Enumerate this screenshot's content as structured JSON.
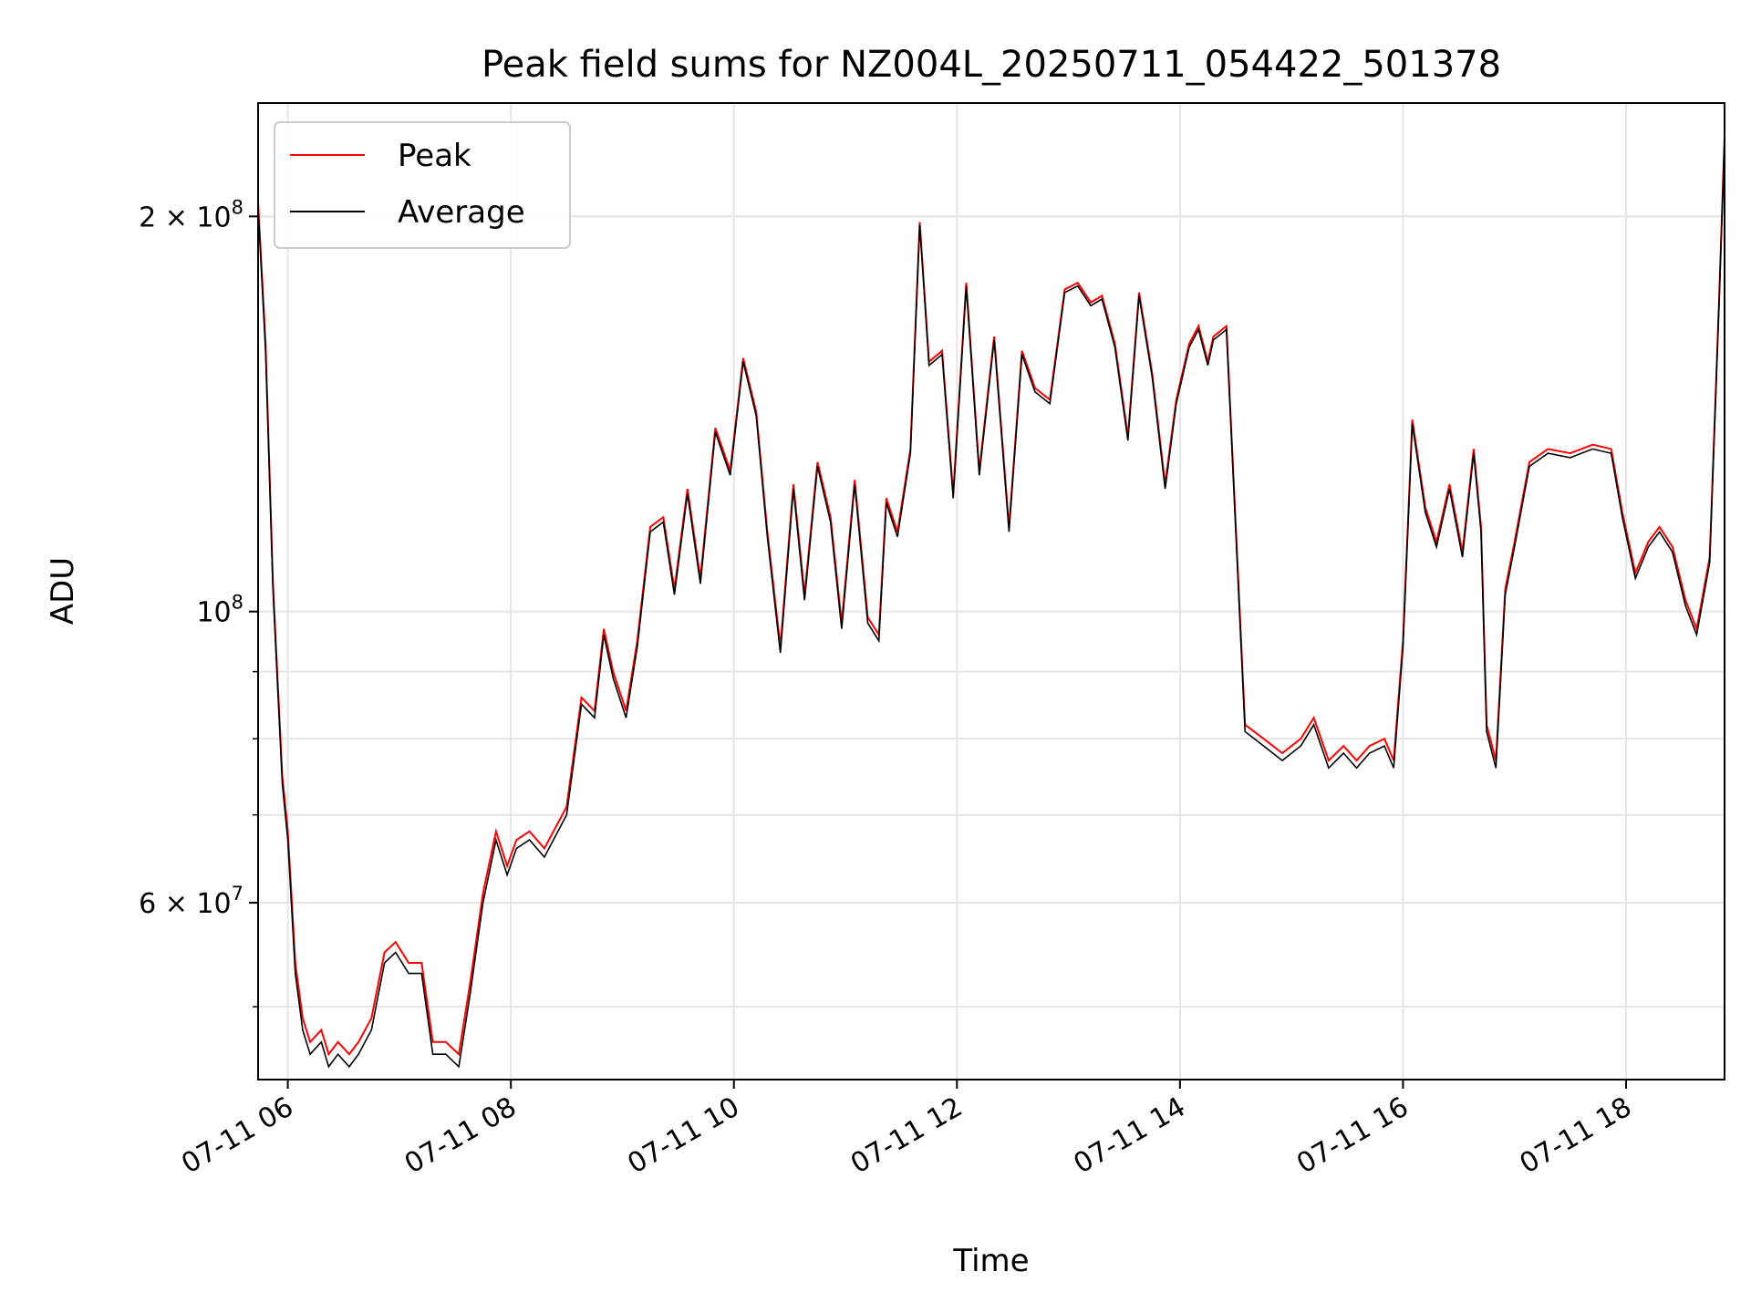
{
  "chart_data": {
    "type": "line",
    "title": "Peak field sums for NZ004L_20250711_054422_501378",
    "xlabel": "Time",
    "ylabel": "ADU",
    "y_scale": "log",
    "ylim": [
      44000000,
      244000000
    ],
    "xlim": [
      "2025-07-11 05:44",
      "2025-07-11 18:53"
    ],
    "grid": true,
    "legend_position": "top-left",
    "x_tick_labels": [
      "07-11 06",
      "07-11 08",
      "07-11 10",
      "07-11 12",
      "07-11 14",
      "07-11 16",
      "07-11 18"
    ],
    "x_tick_values": [
      "2025-07-11 06:00",
      "2025-07-11 08:00",
      "2025-07-11 10:00",
      "2025-07-11 12:00",
      "2025-07-11 14:00",
      "2025-07-11 16:00",
      "2025-07-11 18:00"
    ],
    "y_tick_labels": [
      {
        "value": 200000000,
        "mantissa": "2",
        "exponent": "8"
      },
      {
        "value": 100000000,
        "mantissa": "",
        "exponent": "8"
      },
      {
        "value": 60000000,
        "mantissa": "6",
        "exponent": "7"
      }
    ],
    "y_minor_ticks": [
      40000000,
      50000000,
      60000000,
      70000000,
      80000000,
      90000000,
      200000000
    ],
    "series": [
      {
        "name": "Peak",
        "color": "#ff0000"
      },
      {
        "name": "Average",
        "color": "#000000"
      }
    ],
    "x": [
      "2025-07-11 05:44",
      "2025-07-11 05:48",
      "2025-07-11 05:52",
      "2025-07-11 05:57",
      "2025-07-11 06:00",
      "2025-07-11 06:04",
      "2025-07-11 06:08",
      "2025-07-11 06:12",
      "2025-07-11 06:18",
      "2025-07-11 06:22",
      "2025-07-11 06:27",
      "2025-07-11 06:33",
      "2025-07-11 06:38",
      "2025-07-11 06:45",
      "2025-07-11 06:52",
      "2025-07-11 06:58",
      "2025-07-11 07:05",
      "2025-07-11 07:12",
      "2025-07-11 07:18",
      "2025-07-11 07:25",
      "2025-07-11 07:32",
      "2025-07-11 07:38",
      "2025-07-11 07:45",
      "2025-07-11 07:52",
      "2025-07-11 07:58",
      "2025-07-11 08:03",
      "2025-07-11 08:10",
      "2025-07-11 08:18",
      "2025-07-11 08:30",
      "2025-07-11 08:38",
      "2025-07-11 08:45",
      "2025-07-11 08:50",
      "2025-07-11 08:55",
      "2025-07-11 09:02",
      "2025-07-11 09:08",
      "2025-07-11 09:15",
      "2025-07-11 09:22",
      "2025-07-11 09:28",
      "2025-07-11 09:35",
      "2025-07-11 09:42",
      "2025-07-11 09:50",
      "2025-07-11 09:58",
      "2025-07-11 10:05",
      "2025-07-11 10:12",
      "2025-07-11 10:18",
      "2025-07-11 10:25",
      "2025-07-11 10:32",
      "2025-07-11 10:38",
      "2025-07-11 10:45",
      "2025-07-11 10:52",
      "2025-07-11 10:58",
      "2025-07-11 11:05",
      "2025-07-11 11:12",
      "2025-07-11 11:18",
      "2025-07-11 11:22",
      "2025-07-11 11:28",
      "2025-07-11 11:35",
      "2025-07-11 11:40",
      "2025-07-11 11:45",
      "2025-07-11 11:52",
      "2025-07-11 11:58",
      "2025-07-11 12:05",
      "2025-07-11 12:12",
      "2025-07-11 12:20",
      "2025-07-11 12:28",
      "2025-07-11 12:35",
      "2025-07-11 12:42",
      "2025-07-11 12:50",
      "2025-07-11 12:58",
      "2025-07-11 13:05",
      "2025-07-11 13:12",
      "2025-07-11 13:18",
      "2025-07-11 13:25",
      "2025-07-11 13:32",
      "2025-07-11 13:38",
      "2025-07-11 13:45",
      "2025-07-11 13:52",
      "2025-07-11 13:58",
      "2025-07-11 14:05",
      "2025-07-11 14:10",
      "2025-07-11 14:15",
      "2025-07-11 14:18",
      "2025-07-11 14:25",
      "2025-07-11 14:35",
      "2025-07-11 14:45",
      "2025-07-11 14:55",
      "2025-07-11 15:05",
      "2025-07-11 15:12",
      "2025-07-11 15:20",
      "2025-07-11 15:28",
      "2025-07-11 15:35",
      "2025-07-11 15:42",
      "2025-07-11 15:50",
      "2025-07-11 15:55",
      "2025-07-11 16:00",
      "2025-07-11 16:05",
      "2025-07-11 16:12",
      "2025-07-11 16:18",
      "2025-07-11 16:25",
      "2025-07-11 16:32",
      "2025-07-11 16:38",
      "2025-07-11 16:42",
      "2025-07-11 16:45",
      "2025-07-11 16:50",
      "2025-07-11 16:55",
      "2025-07-11 17:00",
      "2025-07-11 17:08",
      "2025-07-11 17:18",
      "2025-07-11 17:30",
      "2025-07-11 17:42",
      "2025-07-11 17:52",
      "2025-07-11 17:58",
      "2025-07-11 18:05",
      "2025-07-11 18:12",
      "2025-07-11 18:18",
      "2025-07-11 18:25",
      "2025-07-11 18:32",
      "2025-07-11 18:38",
      "2025-07-11 18:45",
      "2025-07-11 18:50",
      "2025-07-11 18:53"
    ],
    "peak": [
      205000000,
      160000000,
      105000000,
      75000000,
      68000000,
      54000000,
      49000000,
      47000000,
      48000000,
      46000000,
      47000000,
      46000000,
      47000000,
      49000000,
      55000000,
      56000000,
      54000000,
      54000000,
      47000000,
      47000000,
      46000000,
      52000000,
      61000000,
      68000000,
      64000000,
      67000000,
      68000000,
      66000000,
      71000000,
      86000000,
      84000000,
      97000000,
      90000000,
      84000000,
      95000000,
      116000000,
      118000000,
      104000000,
      124000000,
      106000000,
      138000000,
      128000000,
      156000000,
      142000000,
      115000000,
      94000000,
      125000000,
      103000000,
      130000000,
      118000000,
      98000000,
      126000000,
      99000000,
      96000000,
      122000000,
      115000000,
      133000000,
      198000000,
      155000000,
      158000000,
      123000000,
      178000000,
      128000000,
      162000000,
      116000000,
      158000000,
      148000000,
      145000000,
      176000000,
      178000000,
      172000000,
      174000000,
      160000000,
      136000000,
      175000000,
      152000000,
      125000000,
      145000000,
      160000000,
      165000000,
      155000000,
      162000000,
      165000000,
      82000000,
      80000000,
      78000000,
      80000000,
      83000000,
      77000000,
      79000000,
      77000000,
      79000000,
      80000000,
      77000000,
      95000000,
      140000000,
      120000000,
      113000000,
      125000000,
      111000000,
      133000000,
      116000000,
      82000000,
      77000000,
      104000000,
      113000000,
      130000000,
      133000000,
      132000000,
      134000000,
      133000000,
      119000000,
      107000000,
      113000000,
      116000000,
      112000000,
      102000000,
      97000000,
      110000000,
      172000000,
      230000000
    ],
    "average": [
      203000000,
      158000000,
      104000000,
      74000000,
      67000000,
      53000000,
      48000000,
      46000000,
      47000000,
      45000000,
      46000000,
      45000000,
      46000000,
      48000000,
      54000000,
      55000000,
      53000000,
      53000000,
      46000000,
      46000000,
      45000000,
      51000000,
      60000000,
      67000000,
      63000000,
      66000000,
      67000000,
      65000000,
      70000000,
      85000000,
      83000000,
      96000000,
      89000000,
      83000000,
      94000000,
      115000000,
      117000000,
      103000000,
      123000000,
      105000000,
      137000000,
      127000000,
      155000000,
      141000000,
      114000000,
      93000000,
      124000000,
      102000000,
      129000000,
      117000000,
      97000000,
      125000000,
      98000000,
      95000000,
      121000000,
      114000000,
      132000000,
      197000000,
      154000000,
      157000000,
      122000000,
      177000000,
      127000000,
      161000000,
      115000000,
      157000000,
      147000000,
      144000000,
      175000000,
      177000000,
      171000000,
      173000000,
      159000000,
      135000000,
      174000000,
      151000000,
      124000000,
      144000000,
      159000000,
      164000000,
      154000000,
      161000000,
      164000000,
      81000000,
      79000000,
      77000000,
      79000000,
      82000000,
      76000000,
      78000000,
      76000000,
      78000000,
      79000000,
      76000000,
      94000000,
      139000000,
      119000000,
      112000000,
      124000000,
      110000000,
      132000000,
      115000000,
      81000000,
      76000000,
      103000000,
      112000000,
      129000000,
      132000000,
      131000000,
      133000000,
      132000000,
      118000000,
      106000000,
      112000000,
      115000000,
      111000000,
      101000000,
      96000000,
      109000000,
      171000000,
      229000000
    ]
  }
}
